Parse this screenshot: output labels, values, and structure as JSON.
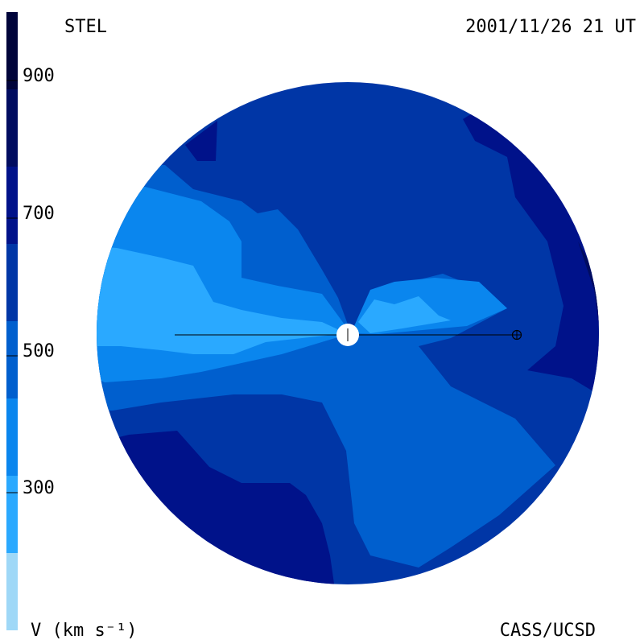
{
  "header": {
    "left_label": "STEL",
    "right_label": "2001/11/26 21 UT"
  },
  "footer": {
    "left_label": "V (km s⁻¹)",
    "right_label": "CASS/UCSD"
  },
  "colorbar": {
    "ticks": [
      {
        "label": "900",
        "value": 900
      },
      {
        "label": "700",
        "value": 700
      },
      {
        "label": "500",
        "value": 500
      },
      {
        "label": "300",
        "value": 300
      }
    ],
    "bands": [
      {
        "from": 200,
        "to": 300,
        "color": "#9fd8f7"
      },
      {
        "from": 300,
        "to": 400,
        "color": "#2aa9ff"
      },
      {
        "from": 400,
        "to": 500,
        "color": "#0a86ee"
      },
      {
        "from": 500,
        "to": 600,
        "color": "#005fce"
      },
      {
        "from": 600,
        "to": 700,
        "color": "#0036a6"
      },
      {
        "from": 700,
        "to": 800,
        "color": "#00128a"
      },
      {
        "from": 800,
        "to": 900,
        "color": "#000c60"
      },
      {
        "from": 900,
        "to": 1000,
        "color": "#00043a"
      }
    ]
  },
  "map": {
    "sun_icon": "sun-disk-icon",
    "earth_icon": "earth-symbol-icon"
  }
}
